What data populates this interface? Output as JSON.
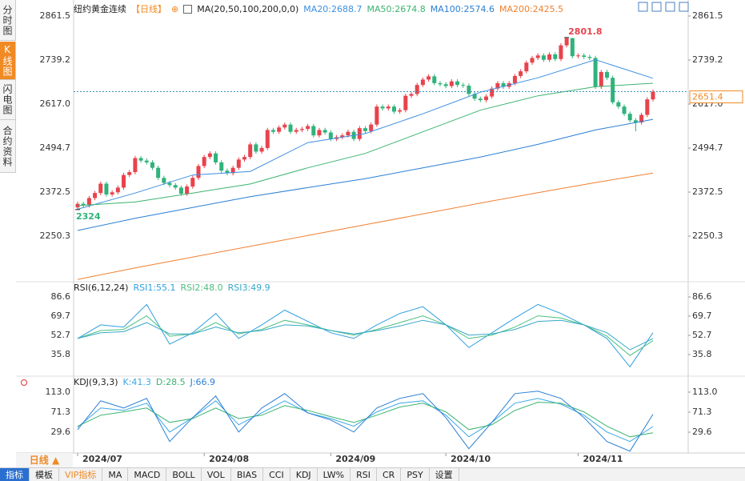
{
  "sidebar": [
    "分时图",
    "K线图",
    "闪电图",
    "合约资料"
  ],
  "period_button": "日线 ▲",
  "tabs": [
    "指标",
    "模板",
    "VIP指标",
    "MA",
    "MACD",
    "BOLL",
    "VOL",
    "BIAS",
    "CCI",
    "KDJ",
    "LW%",
    "RSI",
    "CR",
    "PSY",
    "设置"
  ],
  "chart_data": [
    {
      "type": "candlestick",
      "title": "纽约黄金连续",
      "period": "【日线】",
      "indicator": "MA(20,50,100,200,0,0)",
      "up_color": "#e8434c",
      "down_color": "#2fb37a",
      "ylim": [
        2128.1,
        2888.2
      ],
      "yticks": [
        2861.5,
        2739.2,
        {
          "value": 2617.0,
          "label": "2617.0"
        },
        2494.7,
        2372.5,
        2250.3
      ],
      "xticks": [
        {
          "value": 0,
          "label": "2024/07"
        },
        {
          "value": 22,
          "label": "2024/08"
        },
        {
          "value": 44,
          "label": "2024/09"
        },
        {
          "value": 64,
          "label": "2024/10"
        },
        {
          "value": 87,
          "label": "2024/11"
        }
      ],
      "candles": [
        [
          2330,
          2346,
          2324,
          2340
        ],
        [
          2340,
          2346,
          2330,
          2336
        ],
        [
          2336,
          2362,
          2330,
          2356
        ],
        [
          2356,
          2376,
          2350,
          2370
        ],
        [
          2370,
          2402,
          2364,
          2396
        ],
        [
          2396,
          2402,
          2360,
          2366
        ],
        [
          2366,
          2378,
          2360,
          2372
        ],
        [
          2372,
          2391,
          2366,
          2385
        ],
        [
          2385,
          2426,
          2379,
          2420
        ],
        [
          2420,
          2434,
          2414,
          2428
        ],
        [
          2428,
          2473,
          2422,
          2467
        ],
        [
          2467,
          2473,
          2454,
          2460
        ],
        [
          2460,
          2466,
          2449,
          2455
        ],
        [
          2455,
          2461,
          2434,
          2440
        ],
        [
          2440,
          2446,
          2406,
          2412
        ],
        [
          2412,
          2418,
          2392,
          2398
        ],
        [
          2398,
          2404,
          2386,
          2392
        ],
        [
          2392,
          2398,
          2379,
          2385
        ],
        [
          2385,
          2391,
          2362,
          2368
        ],
        [
          2368,
          2394,
          2362,
          2388
        ],
        [
          2388,
          2418,
          2382,
          2412
        ],
        [
          2412,
          2451,
          2406,
          2445
        ],
        [
          2445,
          2476,
          2439,
          2470
        ],
        [
          2470,
          2486,
          2464,
          2480
        ],
        [
          2480,
          2486,
          2449,
          2455
        ],
        [
          2455,
          2461,
          2426,
          2432
        ],
        [
          2432,
          2438,
          2419,
          2425
        ],
        [
          2425,
          2446,
          2419,
          2440
        ],
        [
          2440,
          2469,
          2434,
          2463
        ],
        [
          2463,
          2476,
          2457,
          2470
        ],
        [
          2470,
          2511,
          2464,
          2505
        ],
        [
          2505,
          2511,
          2479,
          2485
        ],
        [
          2485,
          2501,
          2479,
          2495
        ],
        [
          2495,
          2551,
          2489,
          2545
        ],
        [
          2545,
          2551,
          2534,
          2540
        ],
        [
          2540,
          2558,
          2534,
          2552
        ],
        [
          2552,
          2566,
          2546,
          2560
        ],
        [
          2560,
          2566,
          2534,
          2540
        ],
        [
          2540,
          2551,
          2534,
          2545
        ],
        [
          2545,
          2554,
          2539,
          2548
        ],
        [
          2548,
          2562,
          2542,
          2556
        ],
        [
          2556,
          2562,
          2524,
          2530
        ],
        [
          2530,
          2551,
          2524,
          2545
        ],
        [
          2545,
          2551,
          2532,
          2538
        ],
        [
          2538,
          2544,
          2514,
          2520
        ],
        [
          2520,
          2531,
          2514,
          2525
        ],
        [
          2525,
          2536,
          2519,
          2530
        ],
        [
          2530,
          2546,
          2524,
          2540
        ],
        [
          2540,
          2546,
          2514,
          2520
        ],
        [
          2520,
          2556,
          2514,
          2550
        ],
        [
          2550,
          2556,
          2536,
          2542
        ],
        [
          2542,
          2566,
          2536,
          2560
        ],
        [
          2560,
          2616,
          2554,
          2610
        ],
        [
          2610,
          2616,
          2599,
          2605
        ],
        [
          2605,
          2616,
          2599,
          2610
        ],
        [
          2610,
          2616,
          2590,
          2596
        ],
        [
          2596,
          2606,
          2590,
          2600
        ],
        [
          2600,
          2646,
          2594,
          2640
        ],
        [
          2640,
          2651,
          2634,
          2645
        ],
        [
          2645,
          2676,
          2639,
          2670
        ],
        [
          2670,
          2691,
          2664,
          2685
        ],
        [
          2685,
          2700,
          2679,
          2694
        ],
        [
          2694,
          2700,
          2669,
          2675
        ],
        [
          2675,
          2681,
          2666,
          2672
        ],
        [
          2672,
          2678,
          2661,
          2667
        ],
        [
          2667,
          2686,
          2661,
          2680
        ],
        [
          2680,
          2686,
          2664,
          2670
        ],
        [
          2670,
          2676,
          2662,
          2668
        ],
        [
          2668,
          2674,
          2639,
          2645
        ],
        [
          2645,
          2651,
          2626,
          2632
        ],
        [
          2632,
          2638,
          2622,
          2628
        ],
        [
          2628,
          2644,
          2622,
          2638
        ],
        [
          2638,
          2666,
          2632,
          2660
        ],
        [
          2660,
          2681,
          2654,
          2675
        ],
        [
          2675,
          2681,
          2659,
          2665
        ],
        [
          2665,
          2681,
          2659,
          2675
        ],
        [
          2675,
          2701,
          2669,
          2695
        ],
        [
          2695,
          2714,
          2689,
          2708
        ],
        [
          2708,
          2738,
          2702,
          2732
        ],
        [
          2732,
          2751,
          2726,
          2745
        ],
        [
          2745,
          2758,
          2739,
          2752
        ],
        [
          2752,
          2758,
          2734,
          2740
        ],
        [
          2740,
          2761,
          2734,
          2755
        ],
        [
          2755,
          2761,
          2736,
          2742
        ],
        [
          2742,
          2786,
          2736,
          2780
        ],
        [
          2780,
          2801.8,
          2774,
          2800
        ],
        [
          2800,
          2801,
          2744,
          2750
        ],
        [
          2750,
          2758,
          2744,
          2752
        ],
        [
          2752,
          2758,
          2742,
          2748
        ],
        [
          2748,
          2754,
          2739,
          2745
        ],
        [
          2745,
          2751,
          2659,
          2665
        ],
        [
          2665,
          2712,
          2659,
          2706
        ],
        [
          2706,
          2712,
          2684,
          2690
        ],
        [
          2690,
          2696,
          2616,
          2622
        ],
        [
          2622,
          2628,
          2604,
          2610
        ],
        [
          2610,
          2616,
          2584,
          2590
        ],
        [
          2590,
          2596,
          2566,
          2572
        ],
        [
          2572,
          2578,
          2541.5,
          2566
        ],
        [
          2566,
          2593,
          2560,
          2587
        ],
        [
          2587,
          2636,
          2581,
          2630
        ],
        [
          2630,
          2657,
          2624,
          2651.4
        ]
      ],
      "ma_x": [
        0,
        10,
        20,
        30,
        40,
        50,
        60,
        70,
        80,
        90,
        100
      ],
      "series": [
        {
          "name": "MA20:2688.7",
          "color": "#3d8fe0",
          "values": [
            2325,
            2370,
            2420,
            2430,
            2510,
            2535,
            2590,
            2650,
            2690,
            2740,
            2688.7
          ]
        },
        {
          "name": "MA50:2674.8",
          "color": "#3cb371",
          "values": [
            2335,
            2345,
            2370,
            2395,
            2440,
            2480,
            2540,
            2600,
            2640,
            2665,
            2674.8
          ]
        },
        {
          "name": "MA100:2574.6",
          "color": "#2a7fd4",
          "values": [
            2266,
            2300,
            2330,
            2360,
            2385,
            2410,
            2440,
            2470,
            2505,
            2545,
            2574.6
          ]
        },
        {
          "name": "MA200:2425.5",
          "color": "#f08030",
          "values": [
            2130,
            2162,
            2192,
            2222,
            2252,
            2282,
            2312,
            2342,
            2371,
            2399,
            2425.5
          ]
        }
      ]
    },
    {
      "type": "line",
      "title": "RSI(6,12,24)",
      "ylim": [
        18.2,
        97.9
      ],
      "yticks": [
        86.6,
        69.7,
        52.7,
        35.8
      ],
      "x": [
        0,
        4,
        8,
        12,
        16,
        20,
        24,
        28,
        32,
        36,
        40,
        44,
        48,
        52,
        56,
        60,
        64,
        68,
        72,
        76,
        80,
        84,
        88,
        92,
        96,
        100
      ],
      "series": [
        {
          "name": "RSI1:55.1",
          "color": "#2f9fe0",
          "values": [
            50,
            62,
            60,
            80,
            45,
            55,
            72,
            50,
            62,
            75,
            65,
            55,
            50,
            62,
            72,
            78,
            62,
            42,
            55,
            68,
            80,
            72,
            62,
            50,
            25,
            55.1
          ]
        },
        {
          "name": "RSI2:48.0",
          "color": "#4cbf7f",
          "values": [
            50,
            57,
            58,
            70,
            52,
            54,
            64,
            54,
            58,
            66,
            62,
            57,
            53,
            58,
            64,
            70,
            62,
            50,
            53,
            60,
            70,
            68,
            62,
            52,
            35,
            48.0
          ]
        },
        {
          "name": "RSI3:49.9",
          "color": "#36a9c9",
          "values": [
            50,
            55,
            56,
            64,
            54,
            54,
            60,
            55,
            57,
            62,
            61,
            57,
            54,
            57,
            61,
            66,
            62,
            53,
            54,
            58,
            65,
            66,
            62,
            55,
            40,
            49.9
          ]
        }
      ]
    },
    {
      "type": "line",
      "title": "KDJ(9,3,3)",
      "ylim": [
        -17.1,
        126.3
      ],
      "yticks": [
        {
          "value": 113.0,
          "label": "113.0"
        },
        71.3,
        29.6
      ],
      "x": [
        0,
        4,
        8,
        12,
        16,
        20,
        24,
        28,
        32,
        36,
        40,
        44,
        48,
        52,
        56,
        60,
        64,
        68,
        72,
        76,
        80,
        84,
        88,
        92,
        96,
        100
      ],
      "series": [
        {
          "name": "K:41.3",
          "color": "#3aa7e8",
          "values": [
            40,
            80,
            75,
            90,
            30,
            60,
            95,
            45,
            70,
            95,
            70,
            58,
            42,
            72,
            90,
            95,
            65,
            20,
            50,
            90,
            100,
            88,
            65,
            30,
            10,
            41.3
          ]
        },
        {
          "name": "D:28.5",
          "color": "#3cb371",
          "values": [
            42,
            65,
            72,
            80,
            50,
            58,
            80,
            58,
            65,
            85,
            75,
            62,
            50,
            65,
            82,
            90,
            72,
            35,
            45,
            75,
            92,
            90,
            72,
            42,
            20,
            28.5
          ]
        },
        {
          "name": "J:66.9",
          "color": "#2a7fd4",
          "values": [
            35,
            95,
            80,
            100,
            10,
            60,
            105,
            30,
            80,
            110,
            70,
            55,
            30,
            80,
            100,
            110,
            60,
            -5,
            50,
            110,
            115,
            100,
            60,
            10,
            -10,
            66.9
          ]
        }
      ]
    }
  ]
}
